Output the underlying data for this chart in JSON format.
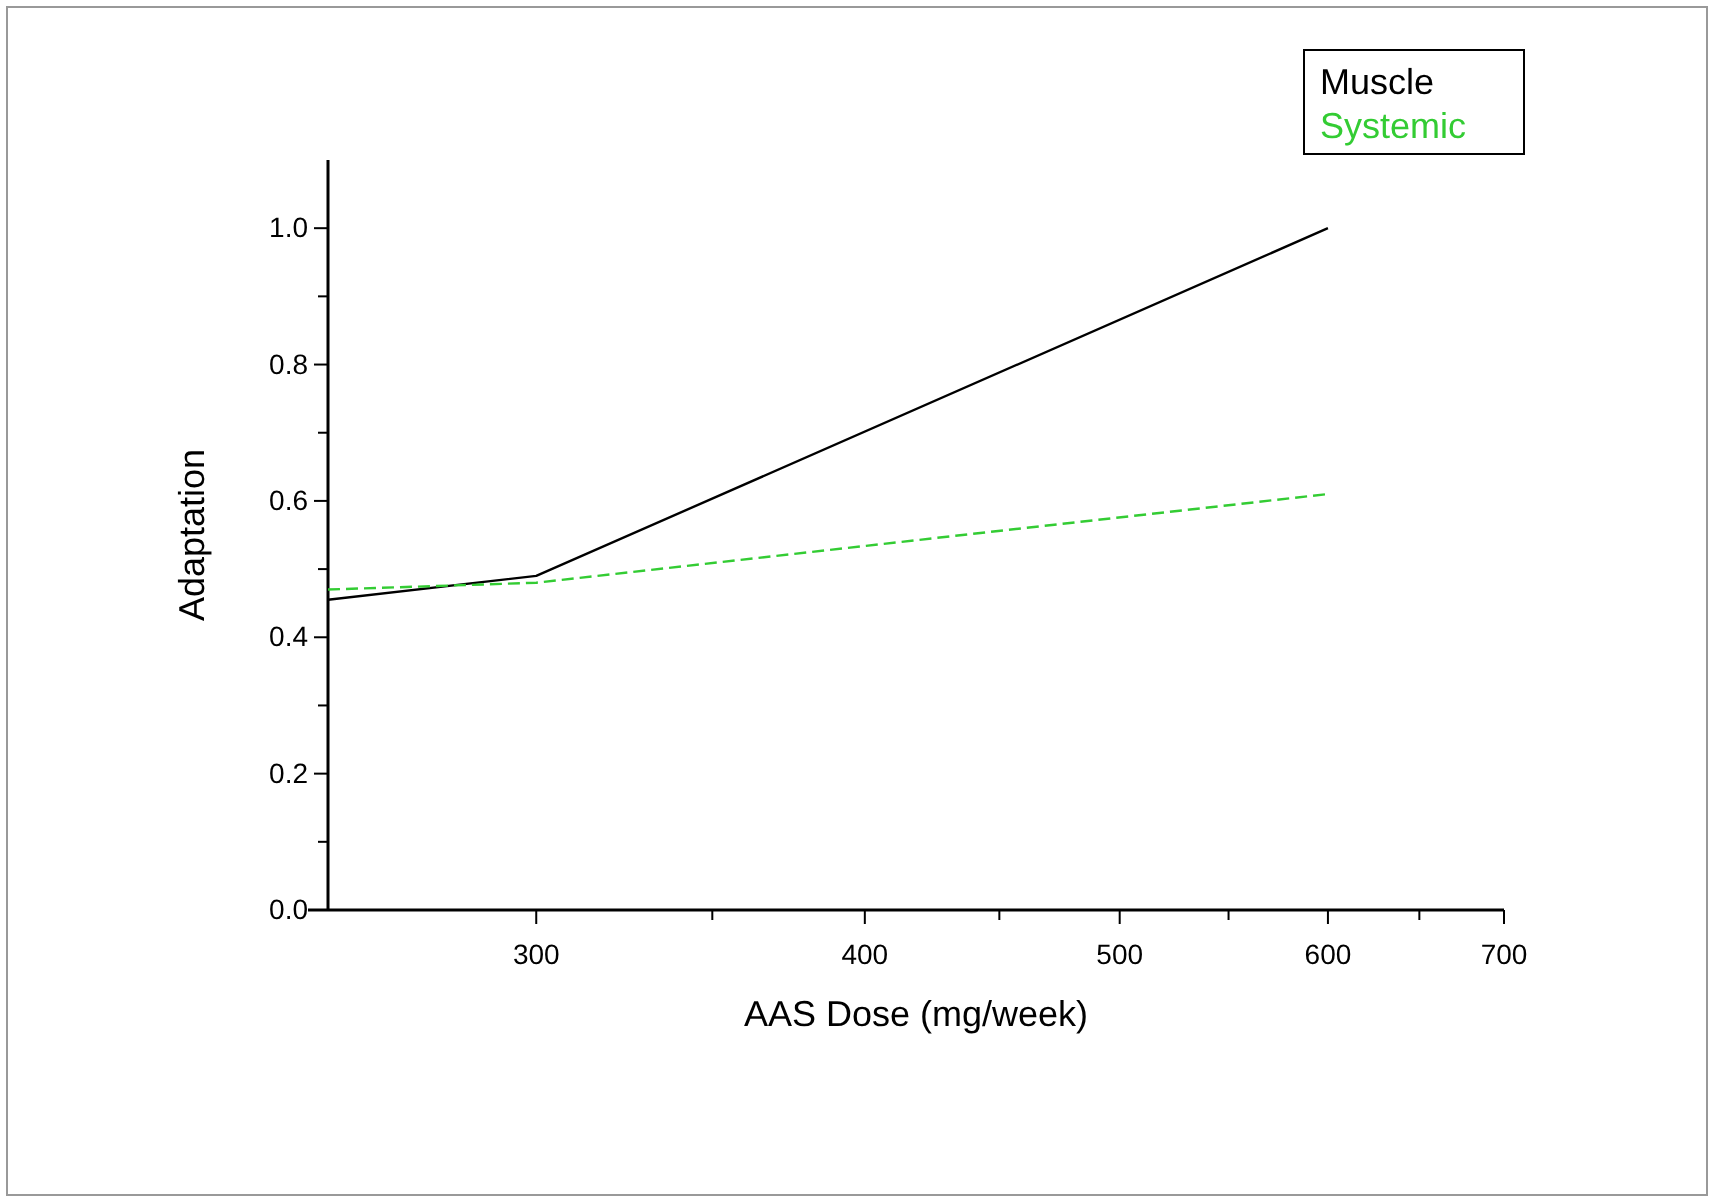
{
  "chart_data": {
    "type": "line",
    "xlabel": "AAS Dose (mg/week)",
    "ylabel": "Adaptation",
    "log": "x",
    "xlim": [
      250,
      700
    ],
    "xticks": [
      300,
      {
        "value": 350,
        "label": null
      },
      400,
      {
        "value": 450,
        "label": null
      },
      500,
      {
        "value": 550,
        "label": null
      },
      600,
      {
        "value": 650,
        "label": null
      },
      700
    ],
    "ylim": [
      0,
      1.1
    ],
    "yticks": [
      {
        "value": 0,
        "label": "0.0"
      },
      {
        "value": 0.1,
        "label": null
      },
      0.2,
      {
        "value": 0.3,
        "label": null
      },
      0.4,
      {
        "value": 0.5,
        "label": null
      },
      0.6,
      {
        "value": 0.7,
        "label": null
      },
      0.8,
      {
        "value": 0.9,
        "label": null
      },
      {
        "value": 1,
        "label": "1.0"
      }
    ],
    "series": [
      {
        "name": "Muscle",
        "color": "#000000",
        "x": [
          250,
          300,
          600
        ],
        "values": [
          0.455,
          0.49,
          1.0
        ],
        "line_style": "solid"
      },
      {
        "name": "Systemic",
        "color": "#33cc33",
        "x": [
          250,
          300,
          600
        ],
        "values": [
          0.47,
          0.48,
          0.61
        ],
        "line_style": "dashed"
      }
    ],
    "legend": "top right",
    "grid": false,
    "marker": "none"
  }
}
